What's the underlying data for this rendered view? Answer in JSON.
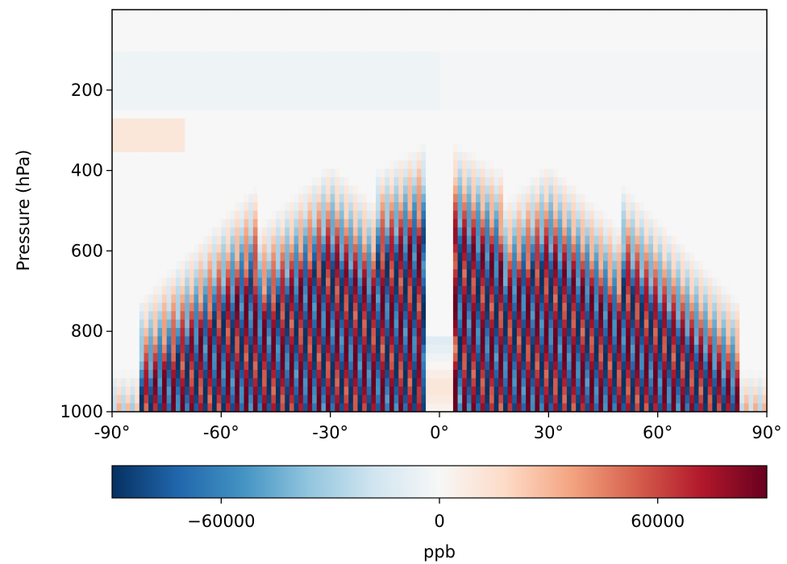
{
  "chart_data": {
    "type": "heatmap",
    "title": "",
    "ylabel": "Pressure (hPa)",
    "xlabel": "",
    "x_range": [
      -90,
      90
    ],
    "y_range": [
      1000,
      0
    ],
    "x_ticks": [
      -90,
      -60,
      -30,
      0,
      30,
      60,
      90
    ],
    "x_tick_labels": [
      "-90°",
      "-60°",
      "-30°",
      "0°",
      "30°",
      "60°",
      "90°"
    ],
    "y_ticks": [
      200,
      400,
      600,
      800,
      1000
    ],
    "y_tick_labels": [
      "200",
      "400",
      "600",
      "800",
      "1000"
    ],
    "colormap": "RdBu_r",
    "colorbar": {
      "label": "ppb",
      "range": [
        -90000,
        90000
      ],
      "ticks": [
        -60000,
        0,
        60000
      ],
      "tick_labels": [
        "−60000",
        "0",
        "60000"
      ],
      "colors": [
        "#053061",
        "#2166ac",
        "#4393c3",
        "#92c5de",
        "#d1e5f0",
        "#f7f7f7",
        "#fddbc7",
        "#f4a582",
        "#d6604d",
        "#b2182b",
        "#67001f"
      ]
    },
    "grid": false,
    "description": ""
  }
}
